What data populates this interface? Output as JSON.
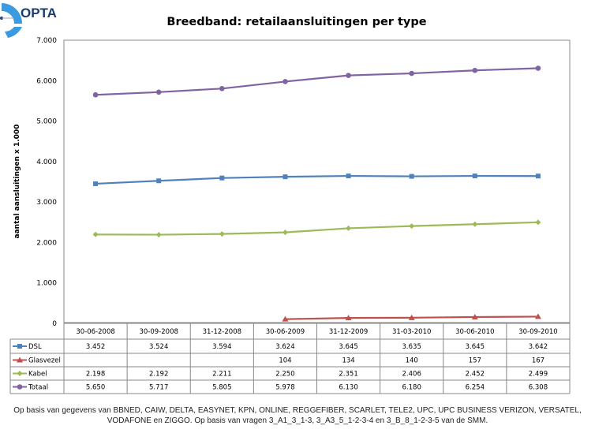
{
  "logo": {
    "text": "OPTA"
  },
  "chart_data": {
    "type": "line",
    "title": "Breedband: retailaansluitingen per type",
    "xlabel": "",
    "ylabel": "aantal aansluitingen x 1.000",
    "ylim": [
      0,
      7000
    ],
    "yticks": [
      "0",
      "1.000",
      "2.000",
      "3.000",
      "4.000",
      "5.000",
      "6.000",
      "7.000"
    ],
    "ytick_values": [
      0,
      1000,
      2000,
      3000,
      4000,
      5000,
      6000,
      7000
    ],
    "grid": false,
    "legend": "data-table-below",
    "categories": [
      "30-06-2008",
      "30-09-2008",
      "31-12-2008",
      "30-06-2009",
      "31-12-2009",
      "31-03-2010",
      "30-06-2010",
      "30-09-2010"
    ],
    "series": [
      {
        "name": "DSL",
        "color": "#4f81bd",
        "marker": "square",
        "values": [
          3452,
          3524,
          3594,
          3624,
          3645,
          3635,
          3645,
          3642
        ],
        "labels": [
          "3.452",
          "3.524",
          "3.594",
          "3.624",
          "3.645",
          "3.635",
          "3.645",
          "3.642"
        ]
      },
      {
        "name": "Glasvezel",
        "color": "#c0504d",
        "marker": "triangle",
        "values": [
          null,
          null,
          null,
          104,
          134,
          140,
          157,
          167
        ],
        "labels": [
          "",
          "",
          "",
          "104",
          "134",
          "140",
          "157",
          "167"
        ]
      },
      {
        "name": "Kabel",
        "color": "#9bbb59",
        "marker": "diamond",
        "values": [
          2198,
          2192,
          2211,
          2250,
          2351,
          2406,
          2452,
          2499
        ],
        "labels": [
          "2.198",
          "2.192",
          "2.211",
          "2.250",
          "2.351",
          "2.406",
          "2.452",
          "2.499"
        ]
      },
      {
        "name": "Totaal",
        "color": "#8064a2",
        "marker": "circle",
        "values": [
          5650,
          5717,
          5805,
          5978,
          6130,
          6180,
          6254,
          6308
        ],
        "labels": [
          "5.650",
          "5.717",
          "5.805",
          "5.978",
          "6.130",
          "6.180",
          "6.254",
          "6.308"
        ]
      }
    ]
  },
  "footnote": {
    "line1": "Op basis van gegevens van BBNED, CAIW, DELTA, EASYNET, KPN, ONLINE, REGGEFIBER, SCARLET, TELE2, UPC, UPC BUSINESS VERIZON, VERSATEL,",
    "line2": "VODAFONE en ZIGGO. Op basis van vragen 3_A1_3_1-3, 3_A3_5_1-2-3-4 en 3_B_8_1-2-3-5 van de SMM."
  }
}
